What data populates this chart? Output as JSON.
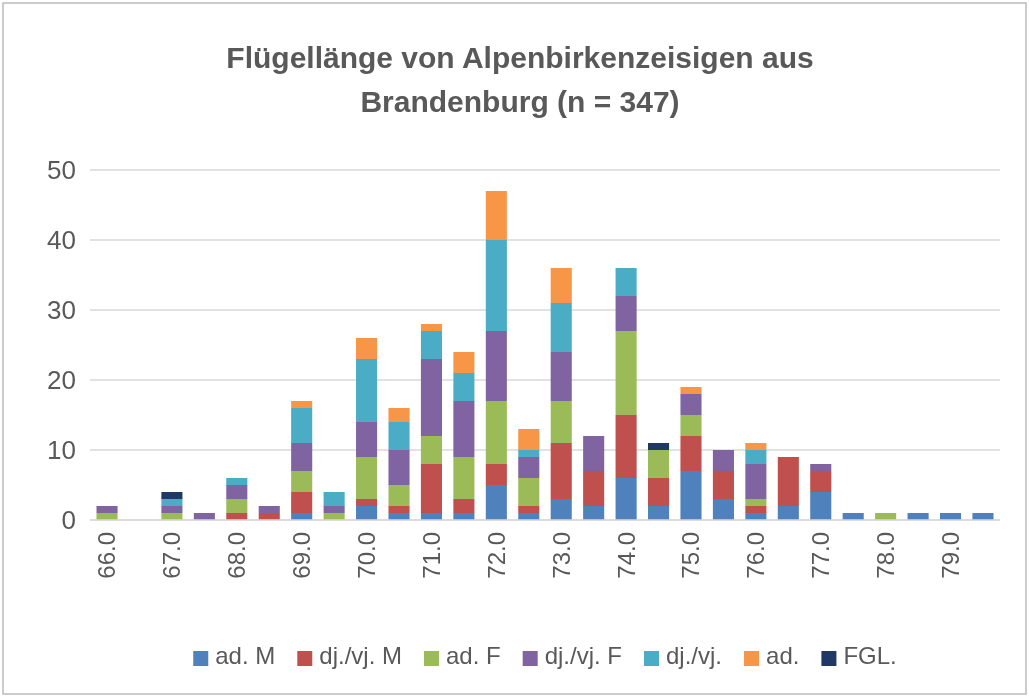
{
  "chart_data": {
    "type": "bar",
    "stacked": true,
    "title": "Flügellänge von Alpenbirkenzeisigen aus Brandenburg (n = 347)",
    "categories": [
      "66.0",
      null,
      "67.0",
      null,
      "68.0",
      null,
      "69.0",
      null,
      "70.0",
      null,
      "71.0",
      null,
      "72.0",
      null,
      "73.0",
      null,
      "74.0",
      null,
      "75.0",
      null,
      "76.0",
      null,
      "77.0",
      null,
      "78.0",
      null,
      "79.0",
      null
    ],
    "series": [
      {
        "name": "ad. M",
        "color": "#4f81bd",
        "values": [
          0,
          0,
          0,
          0,
          0,
          0,
          1,
          0,
          2,
          1,
          1,
          1,
          5,
          1,
          3,
          2,
          6,
          2,
          7,
          3,
          1,
          2,
          4,
          1,
          0,
          1,
          1,
          1
        ]
      },
      {
        "name": "dj./vj. M",
        "color": "#c0504d",
        "values": [
          0,
          0,
          0,
          0,
          1,
          1,
          3,
          0,
          1,
          1,
          7,
          2,
          3,
          1,
          8,
          5,
          9,
          4,
          5,
          4,
          1,
          7,
          3,
          0,
          0,
          0,
          0,
          0
        ]
      },
      {
        "name": "ad. F",
        "color": "#9bbb59",
        "values": [
          1,
          0,
          1,
          0,
          2,
          0,
          3,
          1,
          6,
          3,
          4,
          6,
          9,
          4,
          6,
          0,
          12,
          4,
          3,
          0,
          1,
          0,
          0,
          0,
          1,
          0,
          0,
          0
        ]
      },
      {
        "name": "dj./vj. F",
        "color": "#8064a2",
        "values": [
          1,
          0,
          1,
          1,
          2,
          1,
          4,
          1,
          5,
          5,
          11,
          8,
          10,
          3,
          7,
          5,
          5,
          0,
          3,
          3,
          5,
          0,
          1,
          0,
          0,
          0,
          0,
          0
        ]
      },
      {
        "name": "dj./vj.",
        "color": "#4bacc6",
        "values": [
          0,
          0,
          1,
          0,
          1,
          0,
          5,
          2,
          9,
          4,
          4,
          4,
          13,
          1,
          7,
          0,
          4,
          0,
          0,
          0,
          2,
          0,
          0,
          0,
          0,
          0,
          0,
          0
        ]
      },
      {
        "name": "ad.",
        "color": "#f79646",
        "values": [
          0,
          0,
          0,
          0,
          0,
          0,
          1,
          0,
          3,
          2,
          1,
          3,
          7,
          3,
          5,
          0,
          0,
          0,
          1,
          0,
          1,
          0,
          0,
          0,
          0,
          0,
          0,
          0
        ]
      },
      {
        "name": "FGL.",
        "color": "#1f3864",
        "values": [
          0,
          0,
          1,
          0,
          0,
          0,
          0,
          0,
          0,
          0,
          0,
          0,
          0,
          0,
          0,
          0,
          0,
          1,
          0,
          0,
          0,
          0,
          0,
          0,
          0,
          0,
          0,
          0
        ]
      }
    ],
    "ylim": [
      0,
      50
    ],
    "yticks": [
      0,
      10,
      20,
      30,
      40,
      50
    ],
    "grid": "y",
    "legend": "bottom"
  }
}
